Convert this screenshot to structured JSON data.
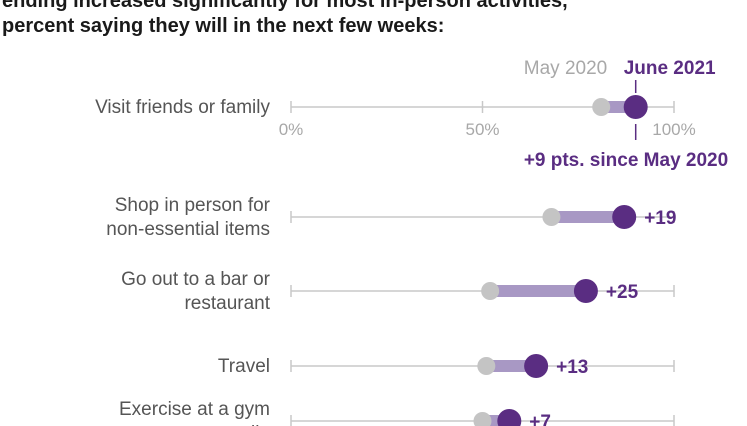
{
  "header": {
    "title_line1": "ending increased significantly for most in-person activities,",
    "title_line2": "percent saying they will in the next few weeks:"
  },
  "colors": {
    "new": "#5a2d82",
    "old": "#c4c4c4",
    "connector": "#a898c4",
    "axis": "#c8c8c8",
    "text": "#555555"
  },
  "chart_data": {
    "type": "dot-plot",
    "xlim": [
      0,
      100
    ],
    "x_ticks": [
      "0%",
      "50%",
      "100%"
    ],
    "legend": {
      "old": "May 2020",
      "new": "June 2021"
    },
    "first_delta_label": "+9 pts. since May 2020",
    "categories": [
      {
        "lines": [
          "Visit friends or family"
        ],
        "may2020": 81,
        "june2021": 90,
        "delta": "+9"
      },
      {
        "lines": [
          "Shop in person for",
          "non-essential items"
        ],
        "may2020": 68,
        "june2021": 87,
        "delta": "+19"
      },
      {
        "lines": [
          "Go out to a bar or",
          "restaurant"
        ],
        "may2020": 52,
        "june2021": 77,
        "delta": "+25"
      },
      {
        "lines": [
          "Travel"
        ],
        "may2020": 51,
        "june2021": 64,
        "delta": "+13"
      },
      {
        "lines": [
          "Exercise at a gym",
          "or studio"
        ],
        "may2020": 50,
        "june2021": 57,
        "delta": "+7"
      }
    ]
  }
}
